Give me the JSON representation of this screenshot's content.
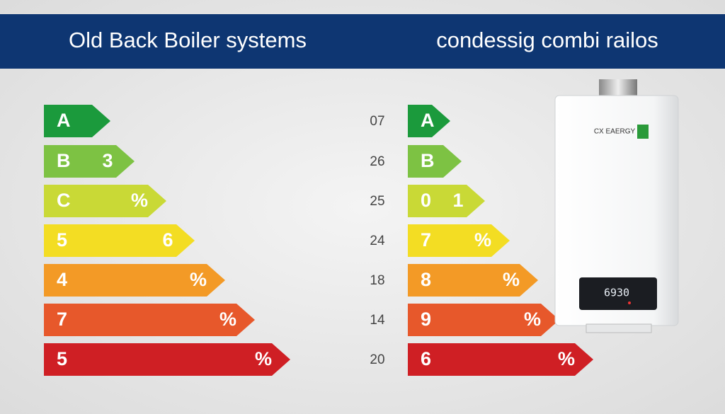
{
  "header": {
    "left_title": "Old Back Boiler systems",
    "right_title": "condessig combi railos"
  },
  "left_scale": {
    "bars": [
      {
        "label": "A",
        "color": "#1b9a3c"
      },
      {
        "label": "B",
        "note": "3",
        "color": "#7dc243"
      },
      {
        "label": "C",
        "note": "%",
        "color": "#c9d936"
      },
      {
        "label": "5",
        "note": "6",
        "color": "#f3dd23"
      },
      {
        "label": "4",
        "note": "%",
        "color": "#f39a26"
      },
      {
        "label": "7",
        "note": "%",
        "color": "#e7582b"
      },
      {
        "label": "5",
        "note": "%",
        "color": "#cf1f24"
      }
    ]
  },
  "right_scale": {
    "bars": [
      {
        "number": "07",
        "label": "A",
        "color": "#1b9a3c"
      },
      {
        "number": "26",
        "label": "B",
        "color": "#7dc243"
      },
      {
        "number": "25",
        "label": "0",
        "note": "1",
        "color": "#c9d936"
      },
      {
        "number": "24",
        "label": "7",
        "note": "%",
        "color": "#f3dd23"
      },
      {
        "number": "18",
        "label": "8",
        "note": "%",
        "color": "#f39a26"
      },
      {
        "number": "14",
        "label": "9",
        "note": "%",
        "color": "#e7582b"
      },
      {
        "number": "20",
        "label": "6",
        "note": "%",
        "color": "#cf1f24"
      }
    ]
  },
  "device": {
    "brand": "CX EAERGY",
    "display": "6930"
  }
}
